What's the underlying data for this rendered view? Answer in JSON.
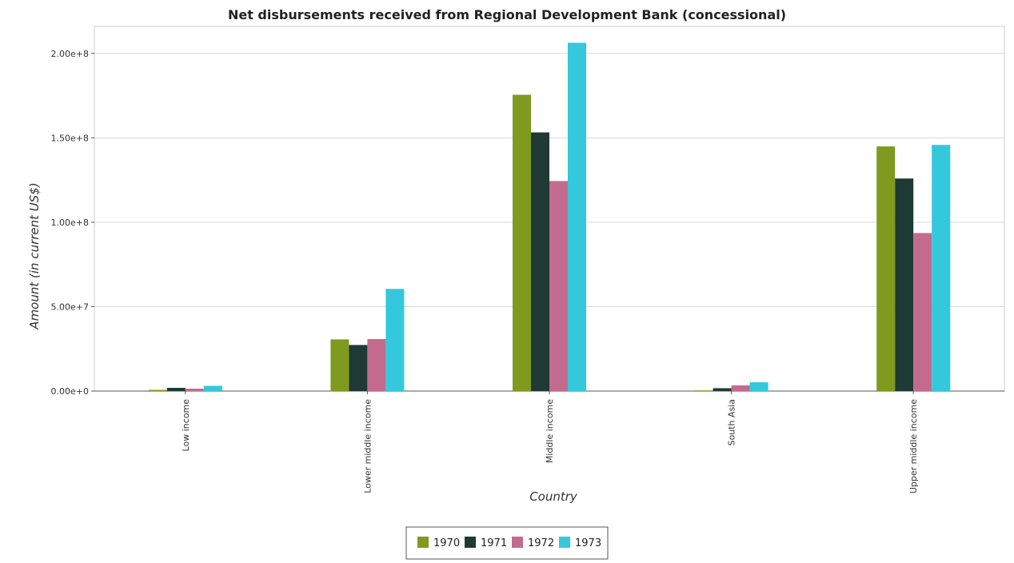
{
  "chart_data": {
    "type": "bar",
    "title": "Net disbursements received from Regional Development Bank (concessional)",
    "xlabel": "Country",
    "ylabel": "Amount (in current US$)",
    "categories": [
      "Low income",
      "Lower middle income",
      "Middle income",
      "South Asia",
      "Upper middle income"
    ],
    "series": [
      {
        "name": "1970",
        "color": "#7f9a1f",
        "values": [
          700000,
          30600000,
          175500000,
          150000,
          144900000
        ]
      },
      {
        "name": "1971",
        "color": "#1f3a35",
        "values": [
          1900000,
          27300000,
          153200000,
          1700000,
          125900000
        ]
      },
      {
        "name": "1972",
        "color": "#c36b8f",
        "values": [
          1400000,
          30800000,
          124400000,
          3400000,
          93600000
        ]
      },
      {
        "name": "1973",
        "color": "#33c8dc",
        "values": [
          3100000,
          60500000,
          206300000,
          5200000,
          145800000
        ]
      }
    ],
    "yticks": [
      "0.00e+0",
      "5.00e+7",
      "1.00e+8",
      "1.50e+8",
      "2.00e+8"
    ],
    "ylim": [
      0,
      216000000
    ],
    "grid": true,
    "legend_position": "bottom-center"
  }
}
